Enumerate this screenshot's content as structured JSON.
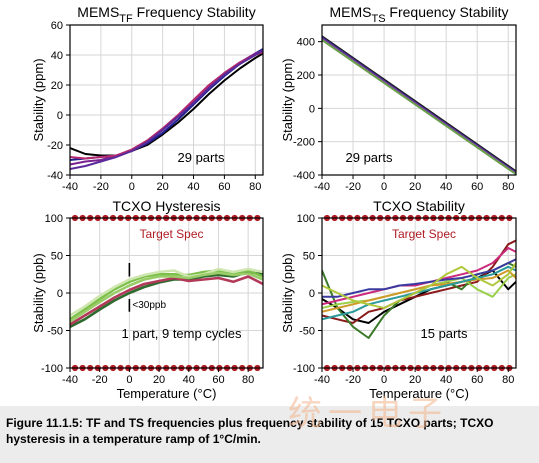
{
  "caption": "Figure 11.1.5: TF and TS frequencies plus frequency stability of 15 TCXO parts; TCXO hysteresis in a temperature ramp of 1°C/min.",
  "watermark": "统一电子",
  "colors": {
    "spec_dots": "#b01c24",
    "tf_series": [
      "#000000",
      "#1f1f8f",
      "#7a1f8f",
      "#b52a6e",
      "#5a2a9a"
    ],
    "ts_series": [
      "#1a1a1a",
      "#3a2a8a",
      "#7a3aa0",
      "#6aa04a"
    ],
    "hyst_series": [
      "#2e6b2e",
      "#7cc04a",
      "#b23a58",
      "#cfe6b0",
      "#9acd6a"
    ],
    "tcxo_series": [
      "#000000",
      "#8b1a1a",
      "#3a7a2a",
      "#cc2a7a",
      "#9ad04a",
      "#3a3aa0",
      "#d09a2a",
      "#2a9a9a",
      "#b0c83a"
    ]
  },
  "chart_data": [
    {
      "type": "line",
      "title_main": "MEMS",
      "title_sub": "TF",
      "title_rest": " Frequency Stability",
      "ylabel": "Stability (ppm)",
      "xlabel": "",
      "xlim": [
        -40,
        85
      ],
      "ylim": [
        -40,
        60
      ],
      "xticks": [
        -40,
        -20,
        0,
        20,
        40,
        60,
        80
      ],
      "yticks": [
        -40,
        -20,
        0,
        20,
        40,
        60
      ],
      "annotation": "29 parts",
      "series": [
        {
          "x": [
            -40,
            -30,
            -20,
            -10,
            0,
            10,
            20,
            30,
            40,
            50,
            60,
            70,
            80,
            85
          ],
          "y": [
            -22,
            -26,
            -27,
            -27,
            -24,
            -20,
            -13,
            -5,
            4,
            14,
            23,
            31,
            38,
            41
          ]
        },
        {
          "x": [
            -40,
            -30,
            -20,
            -10,
            0,
            10,
            20,
            30,
            40,
            50,
            60,
            70,
            80,
            85
          ],
          "y": [
            -30,
            -29,
            -28,
            -27,
            -24,
            -19,
            -12,
            -3,
            7,
            17,
            26,
            34,
            41,
            44
          ]
        },
        {
          "x": [
            -40,
            -30,
            -20,
            -10,
            0,
            10,
            20,
            30,
            40,
            50,
            60,
            70,
            80,
            85
          ],
          "y": [
            -33,
            -31,
            -30,
            -27,
            -24,
            -18,
            -10,
            -1,
            9,
            19,
            28,
            35,
            41,
            43
          ]
        },
        {
          "x": [
            -40,
            -30,
            -20,
            -10,
            0,
            10,
            20,
            30,
            40,
            50,
            60,
            70,
            80,
            85
          ],
          "y": [
            -28,
            -29,
            -28,
            -27,
            -23,
            -17,
            -9,
            0,
            10,
            20,
            28,
            35,
            40,
            42
          ]
        },
        {
          "x": [
            -40,
            -30,
            -20,
            -10,
            0,
            10,
            20,
            30,
            40,
            50,
            60,
            70,
            80,
            85
          ],
          "y": [
            -36,
            -34,
            -31,
            -28,
            -24,
            -18,
            -10,
            -1,
            8,
            18,
            27,
            34,
            40,
            43
          ]
        }
      ]
    },
    {
      "type": "line",
      "title_main": "MEMS",
      "title_sub": "TS",
      "title_rest": " Frequency Stability",
      "ylabel": "Stability (ppm)",
      "xlabel": "",
      "xlim": [
        -40,
        85
      ],
      "ylim": [
        -400,
        500
      ],
      "xticks": [
        -40,
        -20,
        0,
        20,
        40,
        60,
        80
      ],
      "yticks": [
        -400,
        -200,
        0,
        200,
        400
      ],
      "annotation": "29 parts",
      "series": [
        {
          "x": [
            -40,
            85
          ],
          "y": [
            432,
            -378
          ]
        },
        {
          "x": [
            -40,
            85
          ],
          "y": [
            425,
            -385
          ]
        },
        {
          "x": [
            -40,
            85
          ],
          "y": [
            418,
            -390
          ]
        },
        {
          "x": [
            -40,
            85
          ],
          "y": [
            410,
            -395
          ]
        }
      ]
    },
    {
      "type": "line",
      "title": "TCXO Hysteresis",
      "ylabel": "Stability (ppb)",
      "xlabel": "Temperature (°C)",
      "xlim": [
        -40,
        90
      ],
      "ylim": [
        -100,
        100
      ],
      "xticks": [
        -40,
        -20,
        0,
        20,
        40,
        60,
        80
      ],
      "yticks": [
        -100,
        -50,
        0,
        50,
        100
      ],
      "spec_label": "Target Spec",
      "spec_levels": [
        100,
        -100
      ],
      "annotation": "1 part, 9 temp cycles",
      "hysteresis_label": "<30ppb",
      "series": [
        {
          "x": [
            -40,
            -30,
            -20,
            -10,
            0,
            10,
            20,
            30,
            40,
            50,
            60,
            70,
            80,
            90
          ],
          "y": [
            -45,
            -35,
            -22,
            -10,
            0,
            8,
            14,
            18,
            18,
            22,
            24,
            22,
            28,
            25
          ]
        },
        {
          "x": [
            -40,
            -30,
            -20,
            -10,
            0,
            10,
            20,
            30,
            40,
            50,
            60,
            70,
            80,
            90
          ],
          "y": [
            -35,
            -22,
            -8,
            5,
            15,
            22,
            25,
            25,
            24,
            28,
            30,
            26,
            30,
            22
          ]
        },
        {
          "x": [
            -40,
            -30,
            -20,
            -10,
            0,
            10,
            20,
            30,
            40,
            50,
            60,
            70,
            80,
            90
          ],
          "y": [
            -42,
            -30,
            -18,
            -6,
            4,
            12,
            16,
            20,
            16,
            18,
            20,
            15,
            22,
            12
          ]
        },
        {
          "x": [
            -40,
            -30,
            -20,
            -10,
            0,
            10,
            20,
            30,
            40,
            50,
            60,
            70,
            80,
            90
          ],
          "y": [
            -30,
            -18,
            -4,
            8,
            18,
            24,
            28,
            30,
            22,
            25,
            32,
            28,
            32,
            28
          ]
        },
        {
          "x": [
            -40,
            -30,
            -20,
            -10,
            0,
            10,
            20,
            30,
            40,
            50,
            60,
            70,
            80,
            90
          ],
          "y": [
            -38,
            -25,
            -12,
            0,
            10,
            18,
            22,
            22,
            20,
            24,
            27,
            24,
            26,
            18
          ]
        }
      ]
    },
    {
      "type": "line",
      "title": "TCXO Stability",
      "ylabel": "Stability (ppb)",
      "xlabel": "Temperature (°C)",
      "xlim": [
        -40,
        85
      ],
      "ylim": [
        -100,
        100
      ],
      "xticks": [
        -40,
        -20,
        0,
        20,
        40,
        60,
        80
      ],
      "yticks": [
        -100,
        -50,
        0,
        50,
        100
      ],
      "spec_label": "Target Spec",
      "spec_levels": [
        100,
        -100
      ],
      "annotation": "15 parts",
      "series": [
        {
          "x": [
            -40,
            -30,
            -20,
            -10,
            0,
            10,
            20,
            30,
            40,
            50,
            60,
            70,
            80,
            85
          ],
          "y": [
            -8,
            -20,
            -35,
            -40,
            -25,
            -15,
            -5,
            5,
            10,
            15,
            20,
            30,
            5,
            15
          ]
        },
        {
          "x": [
            -40,
            -30,
            -20,
            -10,
            0,
            10,
            20,
            30,
            40,
            50,
            60,
            70,
            80,
            85
          ],
          "y": [
            -30,
            -35,
            -40,
            -25,
            -20,
            -10,
            -5,
            0,
            5,
            10,
            15,
            35,
            65,
            70
          ]
        },
        {
          "x": [
            -40,
            -30,
            -20,
            -10,
            0,
            10,
            20,
            30,
            40,
            50,
            60,
            70,
            80,
            85
          ],
          "y": [
            30,
            -20,
            -45,
            -60,
            -30,
            -10,
            0,
            10,
            15,
            5,
            25,
            30,
            40,
            35
          ]
        },
        {
          "x": [
            -40,
            -30,
            -20,
            -10,
            0,
            10,
            20,
            30,
            40,
            50,
            60,
            70,
            80,
            85
          ],
          "y": [
            -15,
            -10,
            -5,
            0,
            5,
            10,
            10,
            15,
            20,
            25,
            30,
            40,
            60,
            55
          ]
        },
        {
          "x": [
            -40,
            -30,
            -20,
            -10,
            0,
            10,
            20,
            30,
            40,
            50,
            60,
            70,
            80,
            85
          ],
          "y": [
            -20,
            -15,
            -12,
            -10,
            -5,
            0,
            5,
            10,
            15,
            20,
            5,
            -5,
            20,
            25
          ]
        },
        {
          "x": [
            -40,
            -30,
            -20,
            -10,
            0,
            10,
            20,
            30,
            40,
            50,
            60,
            70,
            80,
            85
          ],
          "y": [
            -5,
            -5,
            0,
            5,
            5,
            10,
            12,
            15,
            18,
            20,
            25,
            30,
            40,
            45
          ]
        },
        {
          "x": [
            -40,
            -30,
            -20,
            -10,
            0,
            10,
            20,
            30,
            40,
            50,
            60,
            70,
            80,
            85
          ],
          "y": [
            -25,
            -20,
            -15,
            -10,
            -5,
            0,
            5,
            10,
            12,
            15,
            18,
            20,
            30,
            20
          ]
        },
        {
          "x": [
            -40,
            -30,
            -20,
            -10,
            0,
            10,
            20,
            30,
            40,
            50,
            60,
            70,
            80,
            85
          ],
          "y": [
            -35,
            -30,
            -25,
            -15,
            -10,
            -5,
            0,
            5,
            10,
            15,
            20,
            25,
            35,
            30
          ]
        },
        {
          "x": [
            -40,
            -30,
            -20,
            -10,
            0,
            10,
            20,
            30,
            40,
            50,
            60,
            70,
            80,
            85
          ],
          "y": [
            10,
            0,
            -10,
            -15,
            -20,
            -10,
            0,
            10,
            25,
            35,
            20,
            10,
            25,
            40
          ]
        }
      ]
    }
  ]
}
